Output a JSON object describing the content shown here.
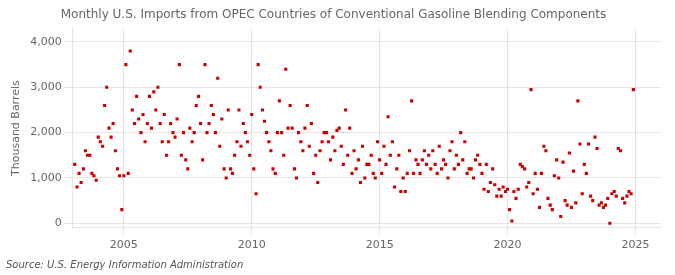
{
  "chart_data": {
    "type": "scatter",
    "title": "Monthly U.S. Imports from OPEC Countries of Conventional Gasoline Blending Components",
    "ylabel": "Thousand Barrels",
    "annotations": [
      "Source: U.S. Energy Information Administration"
    ],
    "color": "#cc0000",
    "marker": "square",
    "grid": true,
    "xlim": [
      2003.0,
      2026.0
    ],
    "ylim": [
      -100,
      4300
    ],
    "xticks": [
      2005,
      2010,
      2015,
      2020,
      2025
    ],
    "yticks": [
      0,
      {
        "value": 1000,
        "label": "1,000"
      },
      {
        "value": 2000,
        "label": "2,000"
      },
      {
        "value": 3000,
        "label": "3,000"
      },
      {
        "value": 4000,
        "label": "4,000"
      }
    ],
    "x": [
      2003.08,
      2003.17,
      2003.25,
      2003.33,
      2003.42,
      2003.5,
      2003.58,
      2003.67,
      2003.75,
      2003.83,
      2003.92,
      2004.0,
      2004.08,
      2004.17,
      2004.25,
      2004.33,
      2004.42,
      2004.5,
      2004.58,
      2004.67,
      2004.75,
      2004.83,
      2004.92,
      2005.0,
      2005.08,
      2005.17,
      2005.25,
      2005.33,
      2005.42,
      2005.5,
      2005.58,
      2005.67,
      2005.75,
      2005.83,
      2005.92,
      2006.0,
      2006.08,
      2006.17,
      2006.25,
      2006.33,
      2006.42,
      2006.5,
      2006.58,
      2006.67,
      2006.75,
      2006.83,
      2006.92,
      2007.0,
      2007.08,
      2007.17,
      2007.25,
      2007.33,
      2007.42,
      2007.5,
      2007.58,
      2007.67,
      2007.75,
      2007.83,
      2007.92,
      2008.0,
      2008.08,
      2008.17,
      2008.25,
      2008.33,
      2008.42,
      2008.5,
      2008.58,
      2008.67,
      2008.75,
      2008.83,
      2008.92,
      2009.0,
      2009.08,
      2009.17,
      2009.25,
      2009.33,
      2009.42,
      2009.5,
      2009.58,
      2009.67,
      2009.75,
      2009.83,
      2009.92,
      2010.0,
      2010.08,
      2010.17,
      2010.25,
      2010.33,
      2010.42,
      2010.5,
      2010.58,
      2010.67,
      2010.75,
      2010.83,
      2010.92,
      2011.0,
      2011.08,
      2011.17,
      2011.25,
      2011.33,
      2011.42,
      2011.5,
      2011.58,
      2011.67,
      2011.75,
      2011.83,
      2011.92,
      2012.0,
      2012.08,
      2012.17,
      2012.25,
      2012.33,
      2012.42,
      2012.5,
      2012.58,
      2012.67,
      2012.75,
      2012.83,
      2012.92,
      2013.0,
      2013.08,
      2013.17,
      2013.25,
      2013.33,
      2013.42,
      2013.5,
      2013.58,
      2013.67,
      2013.75,
      2013.83,
      2013.92,
      2014.0,
      2014.08,
      2014.17,
      2014.25,
      2014.33,
      2014.42,
      2014.5,
      2014.58,
      2014.67,
      2014.75,
      2014.83,
      2014.92,
      2015.0,
      2015.08,
      2015.17,
      2015.25,
      2015.33,
      2015.42,
      2015.5,
      2015.58,
      2015.67,
      2015.75,
      2015.83,
      2015.92,
      2016.0,
      2016.08,
      2016.17,
      2016.25,
      2016.33,
      2016.42,
      2016.5,
      2016.58,
      2016.67,
      2016.75,
      2016.83,
      2016.92,
      2017.0,
      2017.08,
      2017.17,
      2017.25,
      2017.33,
      2017.42,
      2017.5,
      2017.58,
      2017.67,
      2017.75,
      2017.83,
      2017.92,
      2018.0,
      2018.08,
      2018.17,
      2018.25,
      2018.33,
      2018.42,
      2018.5,
      2018.58,
      2018.67,
      2018.75,
      2018.83,
      2018.92,
      2019.0,
      2019.08,
      2019.17,
      2019.25,
      2019.33,
      2019.42,
      2019.5,
      2019.58,
      2019.67,
      2019.75,
      2019.83,
      2019.92,
      2020.0,
      2020.08,
      2020.17,
      2020.25,
      2020.33,
      2020.42,
      2020.5,
      2020.58,
      2020.67,
      2020.75,
      2020.83,
      2020.92,
      2021.0,
      2021.08,
      2021.17,
      2021.25,
      2021.33,
      2021.42,
      2021.5,
      2021.58,
      2021.67,
      2021.75,
      2021.83,
      2021.92,
      2022.0,
      2022.08,
      2022.17,
      2022.25,
      2022.33,
      2022.42,
      2022.5,
      2022.58,
      2022.67,
      2022.75,
      2022.83,
      2022.92,
      2023.0,
      2023.08,
      2023.17,
      2023.25,
      2023.33,
      2023.42,
      2023.5,
      2023.58,
      2023.67,
      2023.75,
      2023.83,
      2023.92,
      2024.0,
      2024.08,
      2024.17,
      2024.25,
      2024.33,
      2024.42,
      2024.5,
      2024.58,
      2024.67,
      2024.75,
      2024.83,
      2024.92
    ],
    "values": [
      1300,
      800,
      1100,
      900,
      1200,
      1600,
      1500,
      1500,
      1100,
      1050,
      950,
      1900,
      1800,
      1700,
      2600,
      3000,
      2100,
      1900,
      2200,
      1600,
      1200,
      1050,
      300,
      1050,
      3500,
      1100,
      3800,
      2500,
      2200,
      2800,
      2300,
      2000,
      2400,
      1800,
      2200,
      2800,
      2100,
      2900,
      2500,
      3000,
      2200,
      1800,
      2400,
      1500,
      1800,
      2200,
      2000,
      1900,
      2300,
      3500,
      1500,
      2000,
      1400,
      1200,
      2100,
      1800,
      2000,
      2600,
      2800,
      2200,
      1400,
      3500,
      2000,
      2200,
      2600,
      2400,
      2000,
      3200,
      1700,
      2300,
      1200,
      1000,
      2500,
      1200,
      1100,
      1500,
      1800,
      2500,
      1700,
      2200,
      2000,
      1800,
      1500,
      2400,
      1200,
      650,
      3500,
      3000,
      2500,
      2250,
      2000,
      1800,
      1600,
      1200,
      1100,
      2000,
      2700,
      2000,
      1500,
      3400,
      2100,
      2600,
      2100,
      1200,
      1000,
      2000,
      1800,
      1600,
      2100,
      2600,
      1700,
      2200,
      1100,
      1500,
      900,
      1600,
      1800,
      2000,
      2000,
      1800,
      1400,
      1900,
      1600,
      2050,
      2100,
      1700,
      1300,
      2500,
      1500,
      2100,
      1100,
      1600,
      1200,
      1400,
      900,
      1700,
      1000,
      1300,
      1300,
      1500,
      1100,
      1000,
      1800,
      1400,
      1100,
      1700,
      1300,
      2350,
      1500,
      1800,
      800,
      1200,
      1500,
      700,
      1000,
      700,
      1100,
      1600,
      2700,
      1100,
      1400,
      1300,
      1100,
      1400,
      1600,
      1300,
      1500,
      1200,
      1600,
      1300,
      1100,
      1700,
      1200,
      1400,
      1300,
      1000,
      1600,
      1800,
      1200,
      1500,
      1300,
      2000,
      1400,
      1800,
      1100,
      1200,
      1200,
      1000,
      1400,
      1500,
      1300,
      1100,
      750,
      1300,
      700,
      900,
      1200,
      850,
      600,
      750,
      600,
      800,
      700,
      750,
      300,
      50,
      700,
      550,
      750,
      1300,
      1250,
      1200,
      800,
      900,
      2950,
      650,
      1100,
      750,
      350,
      1100,
      1700,
      1600,
      550,
      400,
      300,
      1050,
      1400,
      1000,
      150,
      1350,
      500,
      400,
      1550,
      350,
      1150,
      450,
      2700,
      1750,
      650,
      1300,
      1100,
      1750,
      600,
      500,
      1900,
      1650,
      400,
      450,
      350,
      400,
      550,
      0,
      650,
      700,
      600,
      1650,
      1600,
      550,
      450,
      600,
      700,
      650,
      2950
    ]
  }
}
